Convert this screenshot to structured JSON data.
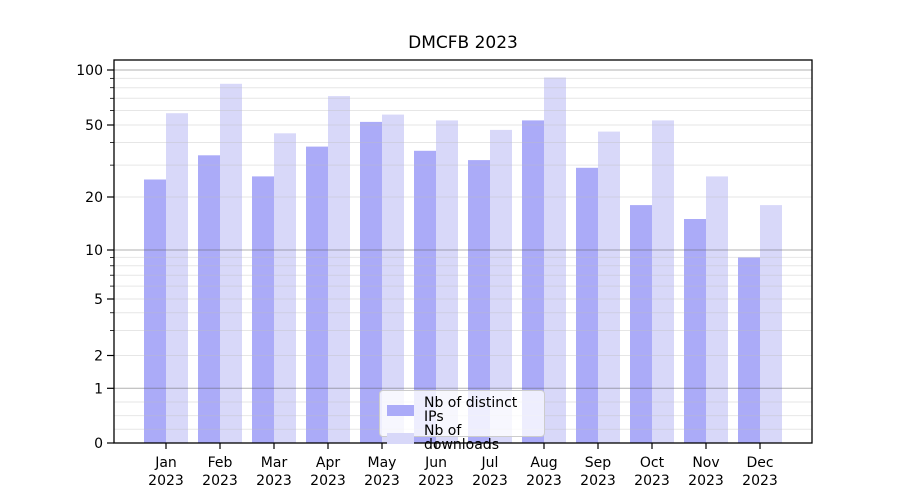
{
  "chart_data": {
    "type": "bar",
    "title": "DMCFB 2023",
    "categories": [
      "Jan 2023",
      "Feb 2023",
      "Mar 2023",
      "Apr 2023",
      "May 2023",
      "Jun 2023",
      "Jul 2023",
      "Aug 2023",
      "Sep 2023",
      "Oct 2023",
      "Nov 2023",
      "Dec 2023"
    ],
    "series": [
      {
        "name": "Nb of distinct IPs",
        "key": "ips",
        "color": "#ababf8",
        "values": [
          25,
          34,
          26,
          38,
          52,
          36,
          32,
          53,
          29,
          18,
          15,
          9
        ]
      },
      {
        "name": "Nb of downloads",
        "key": "downloads",
        "color": "#d8d8f9",
        "values": [
          58,
          84,
          45,
          72,
          57,
          53,
          47,
          91,
          46,
          53,
          26,
          18
        ]
      }
    ],
    "y_axis": {
      "scale": "log-like (1-2-5 ticks) with linear segment down to 0",
      "ticks": [
        0,
        1,
        2,
        5,
        10,
        20,
        50,
        100
      ],
      "tick_labels": [
        "0",
        "1",
        "2",
        "5",
        "10",
        "20",
        "50",
        "100"
      ],
      "minor_gridlines": [
        0.25,
        0.5,
        0.75,
        3,
        4,
        6,
        7,
        8,
        9,
        30,
        40,
        60,
        70,
        80,
        90
      ],
      "ylim": [
        0,
        110
      ]
    },
    "x_axis": {
      "label_lines": 2
    },
    "legend": {
      "position": "lower center",
      "entries": [
        "Nb of distinct IPs",
        "Nb of downloads"
      ]
    },
    "grid": true,
    "colors": {
      "bar_ips": "#ababf8",
      "bar_downloads": "#d8d8f9",
      "grid_major": "#b2b2b2",
      "grid_minor": "#e6e6e6",
      "axis": "#000000",
      "background": "#ffffff"
    }
  }
}
